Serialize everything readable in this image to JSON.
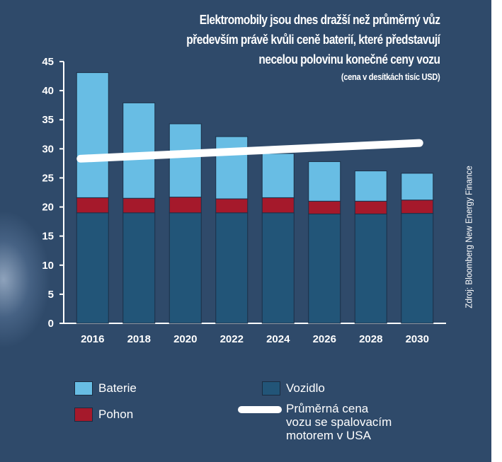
{
  "title": {
    "lines": [
      "Elektromobily jsou dnes dražší než průměrný vůz",
      "především právě kvůli ceně baterií, které představují",
      "necelou polovinu konečné ceny vozu"
    ],
    "subtitle": "(cena v desítkách tisíc USD)"
  },
  "source": "Zdroj: Bloomberg New Energy Finance",
  "colors": {
    "background": "#2f4a6a",
    "vozidlo": "#225578",
    "pohon": "#a5192b",
    "baterie": "#68bde4",
    "line": "#ffffff"
  },
  "legend": {
    "baterie": "Baterie",
    "pohon": "Pohon",
    "vozidlo": "Vozidlo",
    "line": "Průměrná cena\nvozu se spalovacím\nmotorem v USA"
  },
  "chart_data": {
    "type": "bar",
    "stacked": true,
    "categories": [
      "2016",
      "2018",
      "2020",
      "2022",
      "2024",
      "2026",
      "2028",
      "2030"
    ],
    "series": [
      {
        "name": "Vozidlo",
        "values": [
          19.0,
          19.0,
          19.0,
          19.0,
          19.0,
          18.8,
          18.8,
          18.9
        ]
      },
      {
        "name": "Pohon",
        "values": [
          2.6,
          2.5,
          2.7,
          2.4,
          2.6,
          2.2,
          2.2,
          2.3
        ]
      },
      {
        "name": "Baterie",
        "values": [
          21.5,
          16.4,
          12.6,
          10.7,
          7.6,
          6.8,
          5.2,
          4.6
        ]
      }
    ],
    "line_series": {
      "name": "Průměrná cena vozu se spalovacím motorem v USA",
      "values": [
        28.3,
        31.0
      ],
      "x_span": [
        "2016",
        "2030"
      ]
    },
    "ylim": [
      0,
      45
    ],
    "yticks": [
      "0",
      "5",
      "10",
      "15",
      "20",
      "25",
      "30",
      "35",
      "40",
      "45"
    ],
    "grid": false,
    "legend_position": "bottom"
  }
}
